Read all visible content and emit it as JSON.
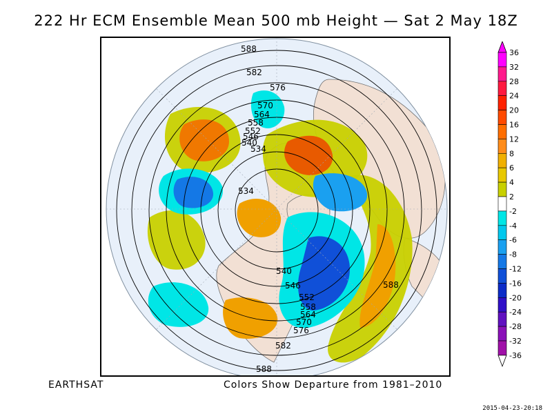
{
  "title": "222 Hr ECM Ensemble Mean 500 mb Height — Sat 2 May 18Z",
  "footer_left": "EARTHSAT",
  "footer_center": "Colors Show Departure from 1981–2010",
  "timestamp": "2015-04-23-20:18",
  "legend": {
    "labels": [
      "36",
      "32",
      "28",
      "24",
      "20",
      "16",
      "12",
      "8",
      "6",
      "4",
      "2",
      "-2",
      "-4",
      "-6",
      "-8",
      "-12",
      "-16",
      "-20",
      "-24",
      "-28",
      "-32",
      "-36"
    ],
    "colors": [
      "#ff00ff",
      "#ff1a8c",
      "#ff1a40",
      "#ff2200",
      "#ff4a00",
      "#ff6e00",
      "#ff8c1a",
      "#f0b000",
      "#e8c800",
      "#c8d000",
      "#ffffff",
      "#00e6e6",
      "#00c8ee",
      "#1aa0f0",
      "#1478e6",
      "#1050d8",
      "#0c2cc8",
      "#3010c8",
      "#6010c0",
      "#8a10b8",
      "#a010a8"
    ]
  },
  "contour_labels": [
    "588",
    "582",
    "576",
    "570",
    "564",
    "558",
    "552",
    "546",
    "540",
    "534",
    "534",
    "540",
    "546",
    "552",
    "558",
    "564",
    "570",
    "576",
    "582",
    "588",
    "588"
  ],
  "palette": {
    "land": "#f2e0d4",
    "ocean": "#e8f0fa",
    "pos_4": "#c8d000",
    "pos_6": "#e8c800",
    "pos_8": "#f0a000",
    "pos_12": "#f07800",
    "pos_16": "#e85a00",
    "neg_4": "#00e6e6",
    "neg_6": "#1aa0f0",
    "neg_8": "#1478e6",
    "neg_12": "#1050d8"
  }
}
